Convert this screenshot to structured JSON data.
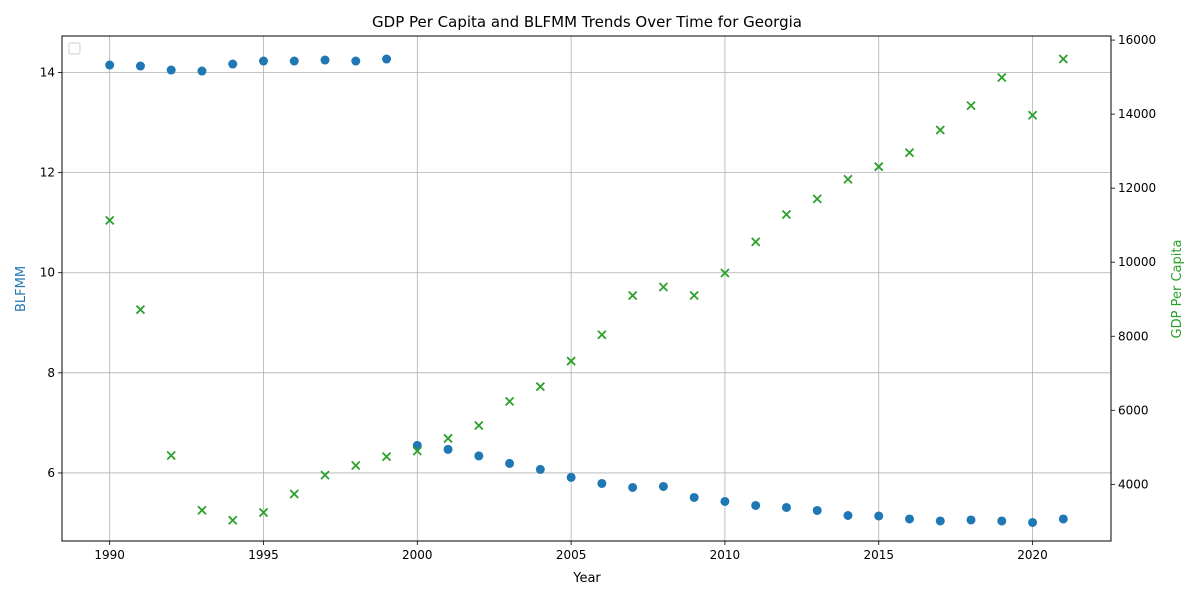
{
  "chart_data": {
    "type": "scatter",
    "title": "GDP Per Capita and BLFMM Trends Over Time for Georgia",
    "xlabel": "Year",
    "ylabel_left": "BLFMM",
    "ylabel_right": "GDP Per Capita",
    "xlim": [
      1988.45,
      2022.55
    ],
    "ylim_left": [
      4.64,
      14.73
    ],
    "ylim_right": [
      2470,
      16110
    ],
    "x_ticks": [
      1990,
      1995,
      2000,
      2005,
      2010,
      2015,
      2020
    ],
    "y_left_ticks": [
      6,
      8,
      10,
      12,
      14
    ],
    "y_right_ticks": [
      4000,
      6000,
      8000,
      10000,
      12000,
      14000,
      16000
    ],
    "grid": true,
    "legend": "top-left, empty",
    "colors": {
      "blfmm": "#1f77b4",
      "gdp": "#2ca02c"
    },
    "series": [
      {
        "axis": "left",
        "marker": "circle",
        "x": [
          1990,
          1991,
          1992,
          1993,
          1994,
          1995,
          1996,
          1997,
          1998,
          1999,
          2000,
          2001,
          2002,
          2003,
          2004,
          2005,
          2006,
          2007,
          2008,
          2009,
          2010,
          2011,
          2012,
          2013,
          2014,
          2015,
          2016,
          2017,
          2018,
          2019,
          2020,
          2021
        ],
        "values": [
          14.15,
          14.13,
          14.05,
          14.03,
          14.17,
          14.23,
          14.23,
          14.25,
          14.23,
          14.27,
          6.55,
          6.47,
          6.34,
          6.19,
          6.07,
          5.91,
          5.79,
          5.71,
          5.73,
          5.51,
          5.43,
          5.35,
          5.31,
          5.25,
          5.15,
          5.14,
          5.08,
          5.04,
          5.06,
          5.04,
          5.01,
          5.08
        ]
      },
      {
        "axis": "right",
        "marker": "x",
        "x": [
          1990,
          1991,
          1992,
          1993,
          1994,
          1995,
          1996,
          1997,
          1998,
          1999,
          2000,
          2001,
          2002,
          2003,
          2004,
          2005,
          2006,
          2007,
          2008,
          2009,
          2010,
          2011,
          2012,
          2013,
          2014,
          2015,
          2016,
          2017,
          2018,
          2019,
          2020,
          2021
        ],
        "values": [
          11130,
          8720,
          4780,
          3300,
          3030,
          3240,
          3740,
          4250,
          4510,
          4750,
          4900,
          5240,
          5590,
          6240,
          6640,
          7330,
          8040,
          9100,
          9330,
          9100,
          9710,
          10550,
          11290,
          11710,
          12240,
          12580,
          12960,
          13570,
          14230,
          14990,
          13970,
          15490
        ]
      }
    ]
  }
}
